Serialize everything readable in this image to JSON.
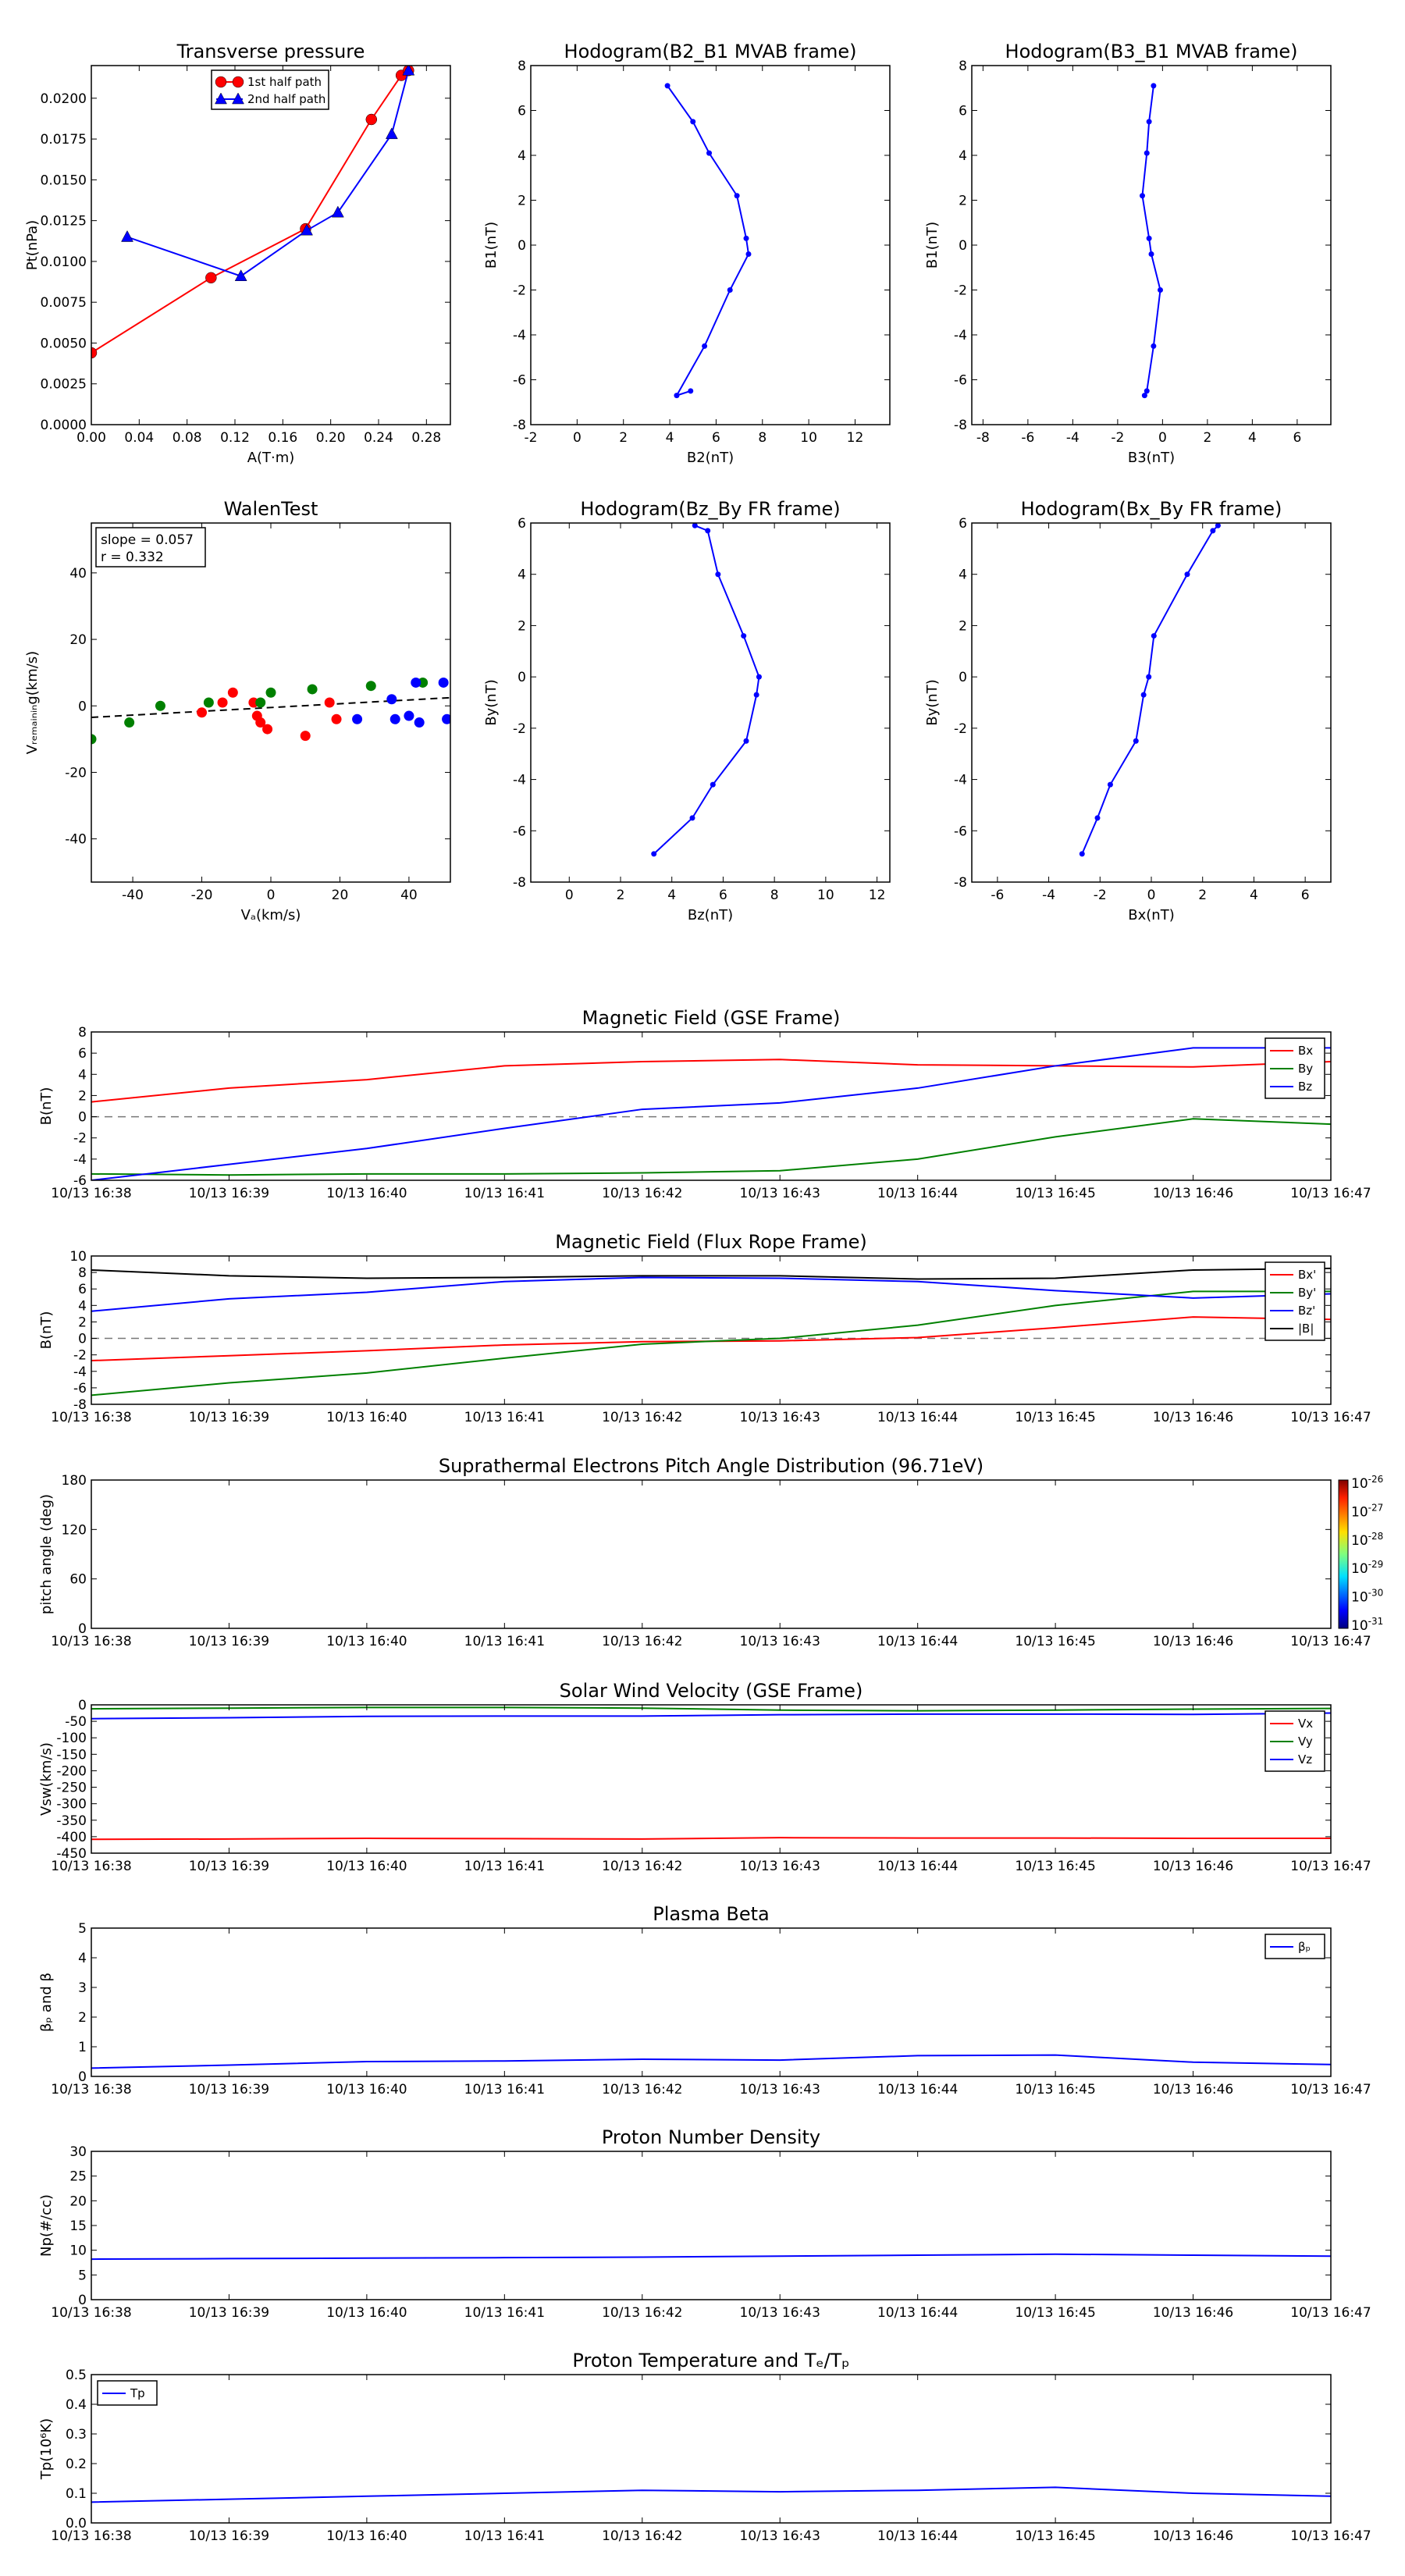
{
  "chart_data": [
    {
      "id": "tp",
      "type": "line",
      "title": "Transverse pressure",
      "xlabel": "A(T·m)",
      "ylabel": "Pt(nPa)",
      "xlim": [
        0,
        0.3
      ],
      "ylim": [
        0,
        0.022
      ],
      "xticks": [
        0,
        0.04,
        0.08,
        0.12,
        0.16,
        0.2,
        0.24,
        0.28
      ],
      "xticklabels": [
        "0.00",
        "0.04",
        "0.08",
        "0.12",
        "0.16",
        "0.20",
        "0.24",
        "0.28"
      ],
      "yticks": [
        0,
        0.0025,
        0.005,
        0.0075,
        0.01,
        0.0125,
        0.015,
        0.0175,
        0.02
      ],
      "yticklabels": [
        "0.0000",
        "0.0025",
        "0.0050",
        "0.0075",
        "0.0100",
        "0.0125",
        "0.0150",
        "0.0175",
        "0.0200"
      ],
      "legend": "top-center",
      "series": [
        {
          "name": "1st half path",
          "color": "#ff0000",
          "marker": "circle",
          "x": [
            0.0,
            0.1,
            0.179,
            0.234,
            0.259,
            0.265
          ],
          "y": [
            0.0044,
            0.009,
            0.012,
            0.0187,
            0.0214,
            0.0217
          ]
        },
        {
          "name": "2nd half path",
          "color": "#0000ff",
          "marker": "triangle",
          "x": [
            0.03,
            0.125,
            0.18,
            0.206,
            0.251,
            0.265
          ],
          "y": [
            0.0115,
            0.0091,
            0.0119,
            0.013,
            0.0178,
            0.0217
          ]
        }
      ]
    },
    {
      "id": "hodo1",
      "type": "line",
      "title": "Hodogram(B2_B1 MVAB frame)",
      "xlabel": "B2(nT)",
      "ylabel": "B1(nT)",
      "xlim": [
        -2,
        13.5
      ],
      "ylim": [
        -8,
        8
      ],
      "xticks": [
        -2,
        0,
        2,
        4,
        6,
        8,
        10,
        12
      ],
      "yticks": [
        -8,
        -6,
        -4,
        -2,
        0,
        2,
        4,
        6,
        8
      ],
      "series": [
        {
          "color": "#0000ff",
          "x": [
            3.9,
            5.0,
            5.7,
            6.9,
            7.3,
            7.4,
            6.6,
            5.5,
            4.3,
            4.9
          ],
          "y": [
            7.1,
            5.5,
            4.1,
            2.2,
            0.3,
            -0.4,
            -2.0,
            -4.5,
            -6.7,
            -6.5
          ]
        }
      ]
    },
    {
      "id": "hodo2",
      "type": "line",
      "title": "Hodogram(B3_B1 MVAB frame)",
      "xlabel": "B3(nT)",
      "ylabel": "B1(nT)",
      "xlim": [
        -8.5,
        7.5
      ],
      "ylim": [
        -8,
        8
      ],
      "xticks": [
        -8,
        -6,
        -4,
        -2,
        0,
        2,
        4,
        6
      ],
      "yticks": [
        -8,
        -6,
        -4,
        -2,
        0,
        2,
        4,
        6,
        8
      ],
      "series": [
        {
          "color": "#0000ff",
          "x": [
            -0.4,
            -0.6,
            -0.7,
            -0.9,
            -0.6,
            -0.5,
            -0.1,
            -0.4,
            -0.7,
            -0.8
          ],
          "y": [
            7.1,
            5.5,
            4.1,
            2.2,
            0.3,
            -0.4,
            -2.0,
            -4.5,
            -6.5,
            -6.7
          ]
        }
      ]
    },
    {
      "id": "walen",
      "type": "scatter",
      "title": "WalenTest",
      "xlabel": "Vₐ(km/s)",
      "ylabel": "Vᵣₑₘₐᵢₙᵢₙg(km/s)",
      "xlim": [
        -52,
        52
      ],
      "ylim": [
        -53,
        55
      ],
      "xticks": [
        -40,
        -20,
        0,
        20,
        40
      ],
      "yticks": [
        -40,
        -20,
        0,
        20,
        40
      ],
      "annotation": [
        "slope = 0.057",
        "r = 0.332"
      ],
      "fit": {
        "slope": 0.057,
        "intercept": -0.5
      },
      "series": [
        {
          "color": "#ff0000",
          "x": [
            -20,
            -14,
            -11,
            -5,
            -4,
            -3,
            -1,
            10,
            17,
            19
          ],
          "y": [
            -2,
            1,
            4,
            1,
            -3,
            -5,
            -7,
            -9,
            1,
            -4
          ]
        },
        {
          "color": "#008000",
          "x": [
            -52,
            -41,
            -32,
            -18,
            -3,
            0,
            12,
            29,
            44
          ],
          "y": [
            -10,
            -5,
            0,
            1,
            1,
            4,
            5,
            6,
            7
          ]
        },
        {
          "color": "#0000ff",
          "x": [
            25,
            35,
            36,
            40,
            42,
            43,
            50,
            51,
            56,
            58
          ],
          "y": [
            -4,
            2,
            -4,
            -3,
            7,
            -5,
            7,
            -4,
            6,
            -3
          ]
        }
      ]
    },
    {
      "id": "hodo3",
      "type": "line",
      "title": "Hodogram(Bz_By FR frame)",
      "xlabel": "Bz(nT)",
      "ylabel": "By(nT)",
      "xlim": [
        -1.5,
        12.5
      ],
      "ylim": [
        -8,
        6
      ],
      "xticks": [
        0,
        2,
        4,
        6,
        8,
        10,
        12
      ],
      "yticks": [
        -8,
        -6,
        -4,
        -2,
        0,
        2,
        4,
        6
      ],
      "series": [
        {
          "color": "#0000ff",
          "x": [
            4.9,
            5.4,
            5.8,
            6.8,
            7.4,
            7.3,
            6.9,
            5.6,
            4.8,
            3.3
          ],
          "y": [
            5.9,
            5.7,
            4.0,
            1.6,
            0.0,
            -0.7,
            -2.5,
            -4.2,
            -5.5,
            -6.9
          ]
        }
      ]
    },
    {
      "id": "hodo4",
      "type": "line",
      "title": "Hodogram(Bx_By FR frame)",
      "xlabel": "Bx(nT)",
      "ylabel": "By(nT)",
      "xlim": [
        -7,
        7
      ],
      "ylim": [
        -8,
        6
      ],
      "xticks": [
        -6,
        -4,
        -2,
        0,
        2,
        4,
        6
      ],
      "yticks": [
        -8,
        -6,
        -4,
        -2,
        0,
        2,
        4,
        6
      ],
      "series": [
        {
          "color": "#0000ff",
          "x": [
            2.6,
            2.4,
            1.4,
            0.1,
            -0.1,
            -0.3,
            -0.6,
            -1.6,
            -2.1,
            -2.7
          ],
          "y": [
            5.9,
            5.7,
            4.0,
            1.6,
            0.0,
            -0.7,
            -2.5,
            -4.2,
            -5.5,
            -6.9
          ]
        }
      ]
    },
    {
      "id": "mag_gse",
      "type": "line",
      "title": "Magnetic Field (GSE Frame)",
      "ylabel": "B(nT)",
      "ylim": [
        -6,
        8
      ],
      "yticks": [
        -6,
        -4,
        -2,
        0,
        2,
        4,
        6,
        8
      ],
      "zeroline": true,
      "legend": "top-right",
      "series": [
        {
          "name": "Bx",
          "color": "#ff0000",
          "values": [
            1.4,
            2.7,
            3.5,
            4.8,
            5.2,
            5.4,
            4.9,
            4.8,
            4.7,
            5.2
          ]
        },
        {
          "name": "By",
          "color": "#008000",
          "values": [
            -5.4,
            -5.5,
            -5.4,
            -5.4,
            -5.3,
            -5.1,
            -4.0,
            -1.9,
            -0.2,
            -0.7
          ]
        },
        {
          "name": "Bz",
          "color": "#0000ff",
          "values": [
            -6.0,
            -4.5,
            -3.0,
            -1.1,
            0.7,
            1.3,
            2.7,
            4.8,
            6.5,
            6.5
          ]
        }
      ]
    },
    {
      "id": "mag_fr",
      "type": "line",
      "title": "Magnetic Field (Flux Rope Frame)",
      "ylabel": "B(nT)",
      "ylim": [
        -8,
        10
      ],
      "yticks": [
        -8,
        -6,
        -4,
        -2,
        0,
        2,
        4,
        6,
        8,
        10
      ],
      "zeroline": true,
      "legend": "top-right",
      "series": [
        {
          "name": "Bx'",
          "color": "#ff0000",
          "values": [
            -2.7,
            -2.1,
            -1.5,
            -0.8,
            -0.4,
            -0.3,
            0.1,
            1.3,
            2.6,
            2.3
          ]
        },
        {
          "name": "By'",
          "color": "#008000",
          "values": [
            -6.9,
            -5.4,
            -4.2,
            -2.4,
            -0.7,
            0.0,
            1.6,
            4.0,
            5.7,
            5.7
          ]
        },
        {
          "name": "Bz'",
          "color": "#0000ff",
          "values": [
            3.3,
            4.8,
            5.6,
            6.9,
            7.4,
            7.3,
            6.9,
            5.8,
            4.9,
            5.4
          ]
        },
        {
          "name": "|B|",
          "color": "#000000",
          "values": [
            8.3,
            7.6,
            7.3,
            7.4,
            7.6,
            7.6,
            7.2,
            7.3,
            8.3,
            8.5
          ]
        }
      ]
    },
    {
      "id": "pad",
      "type": "heatmap",
      "title": "Suprathermal Electrons Pitch Angle Distribution (96.71eV)",
      "ylabel": "pitch angle (deg)",
      "ylim": [
        0,
        180
      ],
      "yticks": [
        0,
        60,
        120,
        180
      ],
      "colorbar": {
        "base": "10",
        "exponents": [
          "-26",
          "-27",
          "-28",
          "-29",
          "-30",
          "-31"
        ]
      }
    },
    {
      "id": "vsw",
      "type": "line",
      "title": "Solar Wind Velocity (GSE Frame)",
      "ylabel": "Vsw(km/s)",
      "ylim": [
        -450,
        0
      ],
      "yticks": [
        0,
        -50,
        -100,
        -150,
        -200,
        -250,
        -300,
        -350,
        -400,
        -450
      ],
      "legend": "top-right",
      "series": [
        {
          "name": "Vx",
          "color": "#ff0000",
          "values": [
            -408,
            -407,
            -405,
            -406,
            -407,
            -403,
            -404,
            -404,
            -405,
            -405
          ]
        },
        {
          "name": "Vy",
          "color": "#008000",
          "values": [
            -12,
            -10,
            -8,
            -8,
            -10,
            -16,
            -18,
            -16,
            -13,
            -11
          ]
        },
        {
          "name": "Vz",
          "color": "#0000ff",
          "values": [
            -42,
            -39,
            -35,
            -34,
            -34,
            -30,
            -28,
            -28,
            -29,
            -25
          ]
        }
      ]
    },
    {
      "id": "beta",
      "type": "line",
      "title": "Plasma Beta",
      "ylabel": "βₚ and β",
      "ylim": [
        0,
        5
      ],
      "yticks": [
        0,
        1,
        2,
        3,
        4,
        5
      ],
      "legend": "top-right",
      "series": [
        {
          "name": "βₚ",
          "color": "#0000ff",
          "values": [
            0.28,
            0.38,
            0.5,
            0.52,
            0.58,
            0.55,
            0.7,
            0.72,
            0.48,
            0.4
          ]
        }
      ]
    },
    {
      "id": "np",
      "type": "line",
      "title": "Proton Number Density",
      "ylabel": "Np(#/cc)",
      "ylim": [
        0,
        30
      ],
      "yticks": [
        0,
        5,
        10,
        15,
        20,
        25,
        30
      ],
      "series": [
        {
          "color": "#0000ff",
          "values": [
            8.2,
            8.3,
            8.4,
            8.5,
            8.6,
            8.8,
            9.0,
            9.2,
            9.0,
            8.8
          ]
        }
      ]
    },
    {
      "id": "tp2",
      "type": "line",
      "title": "Proton Temperature and Tₑ/Tₚ",
      "ylabel": "Tp(10⁶K)",
      "ylim": [
        0,
        0.5
      ],
      "yticks": [
        0,
        0.1,
        0.2,
        0.3,
        0.4,
        0.5
      ],
      "yticklabels": [
        "0.0",
        "0.1",
        "0.2",
        "0.3",
        "0.4",
        "0.5"
      ],
      "legend": "top-left",
      "series": [
        {
          "name": "Tp",
          "color": "#0000ff",
          "values": [
            0.07,
            0.08,
            0.09,
            0.1,
            0.11,
            0.105,
            0.11,
            0.12,
            0.1,
            0.09
          ]
        }
      ]
    }
  ],
  "time_axis": [
    "10/13 16:38",
    "10/13 16:39",
    "10/13 16:40",
    "10/13 16:41",
    "10/13 16:42",
    "10/13 16:43",
    "10/13 16:44",
    "10/13 16:45",
    "10/13 16:46",
    "10/13 16:47"
  ]
}
